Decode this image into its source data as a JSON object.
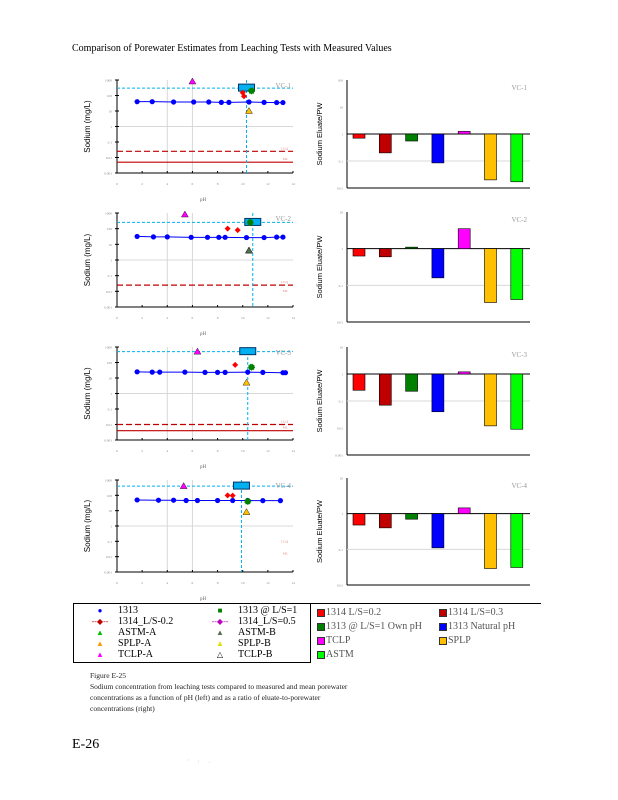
{
  "header": "Comparison of Porewater Estimates from Leaching Tests with Measured Values",
  "left_ylabel": "Sodium (mg/L)",
  "left_xlabel": "pH",
  "right_ylabel": "Sodium Eluate/PW",
  "colors": {
    "measured": "#00b0f0",
    "1313": "#0000ff",
    "1314_02": "#ff0000",
    "1314_03": "#c00000",
    "1313_ls1": "#008000",
    "tclp": "#ff00ff",
    "splp": "#ffc000",
    "astm": "#00ff00",
    "llq": "#c00000",
    "ml": "#c00000"
  },
  "chart_data": [
    {
      "type": "scatter",
      "title": "VC-1",
      "xlabel": "pH",
      "ylabel": "Sodium (mg/L)",
      "xlim": [
        0,
        14
      ],
      "ylim": [
        0.001,
        1000
      ],
      "yscale": "log",
      "xticks": [
        "0",
        "2",
        "4",
        "6",
        "8",
        "10",
        "12",
        "14"
      ],
      "yticks": [
        "1000",
        "100",
        "10",
        "1",
        "0.1",
        "0.01",
        "0.001"
      ],
      "measured": {
        "value": 300,
        "pH": 10.3
      },
      "llq": {
        "label": "LLQ",
        "value": 0.025,
        "show_line": true
      },
      "ml": {
        "label": "ML",
        "value": 0.005,
        "show_line": true
      },
      "series_1313": [
        [
          1.6,
          40
        ],
        [
          2.8,
          40
        ],
        [
          4.5,
          38
        ],
        [
          6.1,
          38
        ],
        [
          7.3,
          38
        ],
        [
          8.3,
          36
        ],
        [
          8.9,
          36
        ],
        [
          10.5,
          38
        ],
        [
          11.7,
          36
        ],
        [
          12.7,
          35
        ],
        [
          13.2,
          35
        ]
      ],
      "markers": [
        {
          "series": "TCLP-A",
          "pH": 6.0,
          "value": 800
        },
        {
          "series": "SPLP-A",
          "pH": 10.5,
          "value": 10
        },
        {
          "series": "1314_L/S-0.2",
          "pH": 10.0,
          "value": 150
        },
        {
          "series": "1314_L/S-0.2",
          "pH": 10.1,
          "value": 90
        },
        {
          "series": "1313 @ L/S=1",
          "pH": 10.7,
          "value": 200
        }
      ]
    },
    {
      "type": "scatter",
      "title": "VC-2",
      "xlabel": "pH",
      "ylabel": "Sodium (mg/L)",
      "xlim": [
        0,
        14
      ],
      "ylim": [
        0.001,
        1000
      ],
      "yscale": "log",
      "xticks": [
        "0",
        "2",
        "4",
        "6",
        "8",
        "10",
        "12",
        "14"
      ],
      "yticks": [
        "1000",
        "100",
        "10",
        "1",
        "0.1",
        "0.01",
        "0.001"
      ],
      "measured": {
        "value": 250,
        "pH": 10.8
      },
      "llq": {
        "label": "LLQ",
        "value": 0.025,
        "show_line": true
      },
      "ml": {
        "label": "ML",
        "value": 0.007,
        "show_line": false
      },
      "series_1313": [
        [
          1.6,
          32
        ],
        [
          2.9,
          30
        ],
        [
          4.0,
          30
        ],
        [
          5.9,
          28
        ],
        [
          7.2,
          28
        ],
        [
          8.1,
          28
        ],
        [
          8.6,
          28
        ],
        [
          10.3,
          27
        ],
        [
          11.7,
          27
        ],
        [
          12.7,
          29
        ],
        [
          13.2,
          29
        ]
      ],
      "markers": [
        {
          "series": "TCLP-A",
          "pH": 5.4,
          "value": 800
        },
        {
          "series": "1314_L/S-0.2",
          "pH": 8.8,
          "value": 100
        },
        {
          "series": "1314_L/S-0.2",
          "pH": 9.6,
          "value": 80
        },
        {
          "series": "SPLP-A",
          "pH": 10.5,
          "value": 4
        },
        {
          "series": "ASTM-B",
          "pH": 10.5,
          "value": 4
        },
        {
          "series": "1313 @ L/S=1",
          "pH": 10.6,
          "value": 250
        }
      ]
    },
    {
      "type": "scatter",
      "title": "VC-3",
      "xlabel": "pH",
      "ylabel": "Sodium (mg/L)",
      "xlim": [
        0,
        14
      ],
      "ylim": [
        0.001,
        1000
      ],
      "yscale": "log",
      "xticks": [
        "0",
        "2",
        "4",
        "6",
        "8",
        "10",
        "12",
        "14"
      ],
      "yticks": [
        "1000",
        "100",
        "10",
        "1",
        "0.1",
        "0.01",
        "0.001"
      ],
      "measured": {
        "value": 500,
        "pH": 10.4
      },
      "llq": {
        "label": "LLQ",
        "value": 0.01,
        "show_line": true
      },
      "ml": {
        "label": "ML",
        "value": 0.004,
        "show_line": true
      },
      "series_1313": [
        [
          1.6,
          25
        ],
        [
          2.8,
          24
        ],
        [
          3.4,
          24
        ],
        [
          5.4,
          24
        ],
        [
          7.0,
          23
        ],
        [
          8.0,
          23
        ],
        [
          8.6,
          23
        ],
        [
          10.4,
          24
        ],
        [
          11.6,
          23
        ],
        [
          13.2,
          22
        ],
        [
          13.4,
          22
        ]
      ],
      "markers": [
        {
          "series": "TCLP-A",
          "pH": 6.4,
          "value": 500
        },
        {
          "series": "1314_L/S-0.2",
          "pH": 9.4,
          "value": 70
        },
        {
          "series": "1313 @ L/S=1",
          "pH": 10.7,
          "value": 50
        },
        {
          "series": "SPLP-A",
          "pH": 10.3,
          "value": 5
        }
      ]
    },
    {
      "type": "scatter",
      "title": "VC-4",
      "xlabel": "pH",
      "ylabel": "Sodium (mg/L)",
      "xlim": [
        0,
        14
      ],
      "ylim": [
        0.001,
        1000
      ],
      "yscale": "log",
      "xticks": [
        "0",
        "2",
        "4",
        "6",
        "8",
        "10",
        "12",
        "14"
      ],
      "yticks": [
        "1000",
        "100",
        "10",
        "1",
        "0.1",
        "0.01",
        "0.001"
      ],
      "measured": {
        "value": 400,
        "pH": 9.9
      },
      "llq": {
        "label": "LLQ",
        "value": 0.06,
        "show_line": false
      },
      "ml": {
        "label": "ML",
        "value": 0.01,
        "show_line": false
      },
      "series_1313": [
        [
          1.6,
          50
        ],
        [
          3.3,
          48
        ],
        [
          4.5,
          48
        ],
        [
          5.5,
          46
        ],
        [
          6.4,
          46
        ],
        [
          8.0,
          46
        ],
        [
          9.2,
          46
        ],
        [
          10.4,
          46
        ],
        [
          11.6,
          45
        ],
        [
          13.0,
          45
        ]
      ],
      "markers": [
        {
          "series": "TCLP-A",
          "pH": 5.3,
          "value": 400
        },
        {
          "series": "1314_L/S-0.2",
          "pH": 8.8,
          "value": 100
        },
        {
          "series": "1314_L/S-0.2",
          "pH": 9.2,
          "value": 95
        },
        {
          "series": "1313 @ L/S=1",
          "pH": 10.4,
          "value": 40
        },
        {
          "series": "SPLP-A",
          "pH": 10.3,
          "value": 8
        }
      ]
    },
    {
      "type": "bar",
      "title": "VC-1",
      "ylabel": "Sodium Eluate/PW",
      "yscale": "log",
      "ylim": [
        0.01,
        100
      ],
      "yticks": [
        "100",
        "10",
        "1",
        "0.1",
        "0.01"
      ],
      "categories": [
        "1314 L/S=0.2",
        "1314 L/S=0.3",
        "1313 @ L/S=1 Own pH",
        "1313 Natural pH",
        "TCLP",
        "SPLP",
        "ASTM"
      ],
      "values": [
        0.7,
        0.2,
        0.55,
        0.085,
        1.25,
        0.02,
        0.017
      ]
    },
    {
      "type": "bar",
      "title": "VC-2",
      "ylabel": "Sodium Eluate/PW",
      "yscale": "log",
      "ylim": [
        0.01,
        10
      ],
      "yticks": [
        "10",
        "1",
        "0.1",
        "0.01"
      ],
      "categories": [
        "1314 L/S=0.2",
        "1314 L/S=0.3",
        "1313 @ L/S=1 Own pH",
        "1313 Natural pH",
        "TCLP",
        "SPLP",
        "ASTM"
      ],
      "values": [
        0.63,
        0.6,
        1.1,
        0.16,
        3.5,
        0.034,
        0.041
      ]
    },
    {
      "type": "bar",
      "title": "VC-3",
      "ylabel": "Sodium Eluate/PW",
      "yscale": "log",
      "ylim": [
        0.001,
        10
      ],
      "yticks": [
        "10",
        "1",
        "0.1",
        "0.01",
        "0.001"
      ],
      "categories": [
        "1314 L/S=0.2",
        "1314 L/S=0.3",
        "1313 @ L/S=1 Own pH",
        "1313 Natural pH",
        "TCLP",
        "SPLP",
        "ASTM"
      ],
      "values": [
        0.25,
        0.07,
        0.23,
        0.04,
        1.2,
        0.012,
        0.009
      ]
    },
    {
      "type": "bar",
      "title": "VC-4",
      "ylabel": "Sodium Eluate/PW",
      "yscale": "log",
      "ylim": [
        0.01,
        10
      ],
      "yticks": [
        "10",
        "1",
        "0.1",
        "0.01"
      ],
      "categories": [
        "1314 L/S=0.2",
        "1314 L/S=0.3",
        "1313 @ L/S=1 Own pH",
        "1313 Natural pH",
        "TCLP",
        "SPLP",
        "ASTM"
      ],
      "values": [
        0.48,
        0.4,
        0.7,
        0.11,
        1.45,
        0.029,
        0.031
      ]
    }
  ],
  "legend_left": [
    {
      "marker": "●",
      "color": "#0000ff",
      "label": "1313"
    },
    {
      "marker": "■",
      "color": "#008000",
      "label": "1313 @ L/S=1"
    },
    {
      "marker": "--◆--",
      "color": "#c00000",
      "label": "1314_L/S-0.2"
    },
    {
      "marker": "--◆--",
      "color": "#c000c0",
      "label": "1314_L/S=0.5"
    },
    {
      "marker": "▲",
      "color": "#00c000",
      "label": "ASTM-A"
    },
    {
      "marker": "▲",
      "color": "#507050",
      "label": "ASTM-B"
    },
    {
      "marker": "▲",
      "color": "#ff9900",
      "label": "SPLP-A"
    },
    {
      "marker": "▲",
      "color": "#e0e000",
      "label": "SPLP-B"
    },
    {
      "marker": "▲",
      "color": "#ff00ff",
      "label": "TCLP-A"
    },
    {
      "marker": "△",
      "color": "#000000",
      "label": "TCLP-B"
    }
  ],
  "legend_right": [
    {
      "color": "#ff0000",
      "label": "1314 L/S=0.2"
    },
    {
      "color": "#c00000",
      "label": "1314 L/S=0.3"
    },
    {
      "color": "#008000",
      "label": "1313 @ L/S=1 Own pH"
    },
    {
      "color": "#0000ff",
      "label": "1313 Natural pH"
    },
    {
      "color": "#ff00ff",
      "label": "TCLP"
    },
    {
      "color": "#ffc000",
      "label": "SPLP"
    },
    {
      "color": "#00ff00",
      "label": "ASTM"
    }
  ],
  "caption": {
    "figure": "Figure E-25",
    "lines": [
      "Sodium concentration from leaching tests compared to measured and mean porewater",
      "concentrations as a function of pH (left) and as a ratio of eluate-to-porewater",
      "concentrations (right)"
    ]
  },
  "page_number": "E-26",
  "footer_marks": "' : ."
}
